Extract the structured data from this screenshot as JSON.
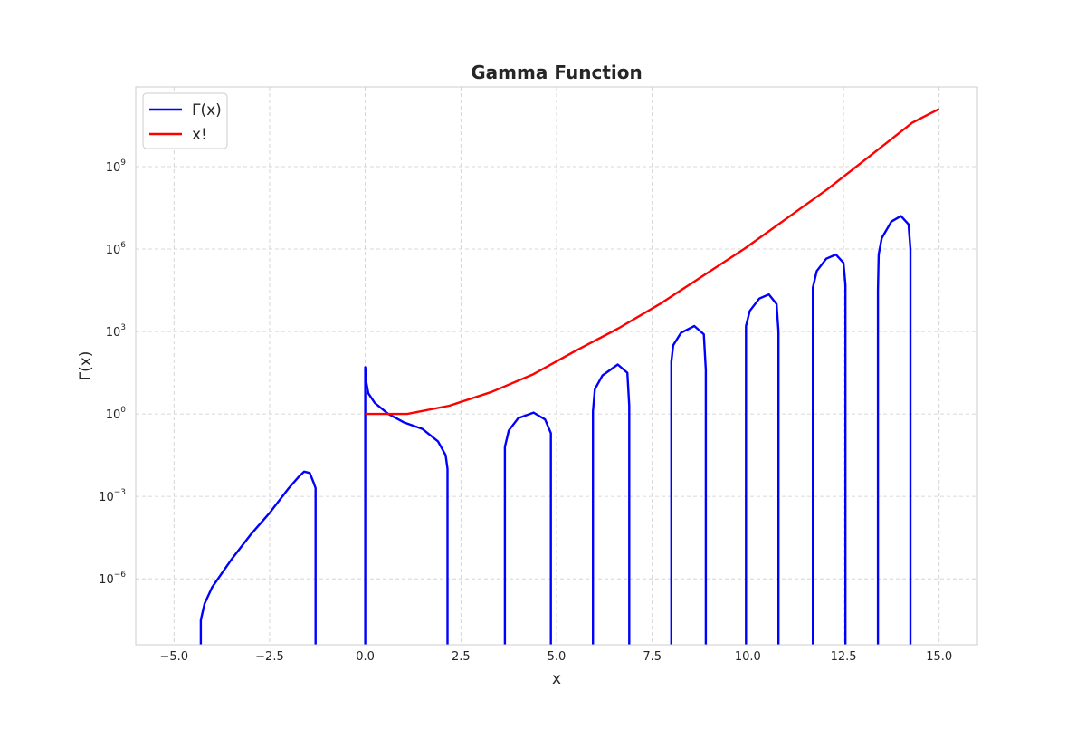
{
  "chart_data": {
    "type": "line",
    "title": "Gamma Function",
    "xlabel": "x",
    "ylabel": "Γ(x)",
    "xlim": [
      -6.0,
      16.0
    ],
    "ylim_log10": [
      -8.4,
      11.9
    ],
    "y_scale": "log",
    "grid": true,
    "legend_placement": "top-left",
    "x_ticks": [
      {
        "value": -5.0,
        "label": "−5.0"
      },
      {
        "value": -2.5,
        "label": "−2.5"
      },
      {
        "value": 0.0,
        "label": "0.0"
      },
      {
        "value": 2.5,
        "label": "2.5"
      },
      {
        "value": 5.0,
        "label": "5.0"
      },
      {
        "value": 7.5,
        "label": "7.5"
      },
      {
        "value": 10.0,
        "label": "10.0"
      },
      {
        "value": 12.5,
        "label": "12.5"
      },
      {
        "value": 15.0,
        "label": "15.0"
      }
    ],
    "y_ticks": [
      {
        "exp": -6,
        "base": "10",
        "sup": "−6"
      },
      {
        "exp": -3,
        "base": "10",
        "sup": "−3"
      },
      {
        "exp": 0,
        "base": "10",
        "sup": "0"
      },
      {
        "exp": 3,
        "base": "10",
        "sup": "3"
      },
      {
        "exp": 6,
        "base": "10",
        "sup": "6"
      },
      {
        "exp": 9,
        "base": "10",
        "sup": "9"
      }
    ],
    "series": [
      {
        "name": "Γ(x)",
        "color": "#0000ff",
        "segments": [
          [
            [
              -4.3,
              -8.4
            ],
            [
              -4.3,
              -7.5
            ],
            [
              -4.2,
              -6.9
            ],
            [
              -4.0,
              -6.3
            ],
            [
              -3.5,
              -5.3
            ],
            [
              -3.0,
              -4.4
            ],
            [
              -2.5,
              -3.6
            ],
            [
              -2.0,
              -2.7
            ],
            [
              -1.75,
              -2.3
            ],
            [
              -1.6,
              -2.1
            ],
            [
              -1.45,
              -2.15
            ],
            [
              -1.35,
              -2.5
            ],
            [
              -1.3,
              -2.7
            ],
            [
              -1.3,
              -8.4
            ]
          ],
          [
            [
              0.0,
              -8.4
            ],
            [
              0.0,
              1.7
            ],
            [
              0.02,
              1.2
            ],
            [
              0.08,
              0.75
            ],
            [
              0.25,
              0.4
            ],
            [
              0.6,
              0.0
            ],
            [
              1.0,
              -0.3
            ],
            [
              1.5,
              -0.55
            ],
            [
              1.9,
              -1.0
            ],
            [
              2.1,
              -1.5
            ],
            [
              2.15,
              -2.0
            ],
            [
              2.15,
              -8.4
            ]
          ],
          [
            [
              3.65,
              -8.4
            ],
            [
              3.65,
              -1.2
            ],
            [
              3.75,
              -0.6
            ],
            [
              4.0,
              -0.15
            ],
            [
              4.4,
              0.05
            ],
            [
              4.7,
              -0.2
            ],
            [
              4.85,
              -0.7
            ],
            [
              4.85,
              -1.3
            ],
            [
              4.85,
              -8.4
            ]
          ],
          [
            [
              5.95,
              -8.4
            ],
            [
              5.95,
              0.1
            ],
            [
              6.0,
              0.9
            ],
            [
              6.2,
              1.4
            ],
            [
              6.6,
              1.8
            ],
            [
              6.85,
              1.5
            ],
            [
              6.9,
              0.3
            ],
            [
              6.9,
              -8.4
            ]
          ],
          [
            [
              8.0,
              -8.4
            ],
            [
              8.0,
              1.9
            ],
            [
              8.05,
              2.5
            ],
            [
              8.25,
              2.95
            ],
            [
              8.6,
              3.2
            ],
            [
              8.85,
              2.9
            ],
            [
              8.9,
              1.6
            ],
            [
              8.9,
              -8.4
            ]
          ],
          [
            [
              9.95,
              -8.4
            ],
            [
              9.95,
              3.2
            ],
            [
              10.05,
              3.75
            ],
            [
              10.3,
              4.2
            ],
            [
              10.55,
              4.35
            ],
            [
              10.75,
              4.0
            ],
            [
              10.8,
              3.0
            ],
            [
              10.8,
              -8.4
            ]
          ],
          [
            [
              11.7,
              -8.4
            ],
            [
              11.7,
              4.6
            ],
            [
              11.8,
              5.2
            ],
            [
              12.05,
              5.65
            ],
            [
              12.3,
              5.8
            ],
            [
              12.5,
              5.5
            ],
            [
              12.55,
              4.7
            ],
            [
              12.55,
              -8.4
            ]
          ],
          [
            [
              13.4,
              -8.4
            ],
            [
              13.4,
              4.5
            ],
            [
              13.42,
              5.8
            ],
            [
              13.5,
              6.4
            ],
            [
              13.75,
              7.0
            ],
            [
              14.0,
              7.2
            ],
            [
              14.2,
              6.9
            ],
            [
              14.25,
              6.0
            ],
            [
              14.25,
              -8.4
            ]
          ]
        ]
      },
      {
        "name": "x!",
        "color": "#ff0000",
        "segments": [
          [
            [
              0.0,
              0.0
            ],
            [
              1.1,
              0.0
            ],
            [
              2.2,
              0.3
            ],
            [
              3.3,
              0.8
            ],
            [
              4.4,
              1.45
            ],
            [
              5.5,
              2.3
            ],
            [
              6.6,
              3.1
            ],
            [
              7.7,
              4.0
            ],
            [
              8.8,
              5.0
            ],
            [
              9.9,
              6.0
            ],
            [
              11.0,
              7.1
            ],
            [
              12.1,
              8.2
            ],
            [
              13.2,
              9.4
            ],
            [
              14.3,
              10.6
            ],
            [
              15.0,
              11.1
            ]
          ]
        ]
      }
    ]
  }
}
